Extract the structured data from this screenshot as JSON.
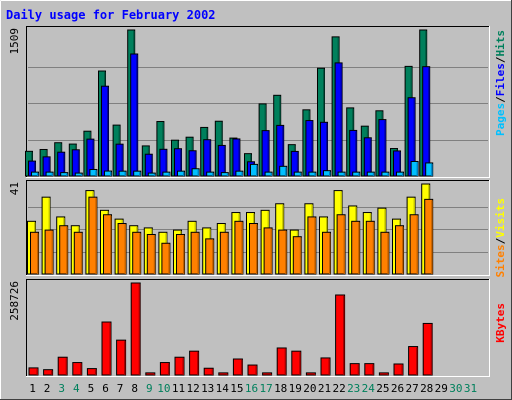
{
  "title": "Daily usage for February 2002",
  "colors": {
    "background": "#c0c0c0",
    "title": "#0000ff",
    "grid": "#808080",
    "hits_face": "#00805c",
    "hits_side": "#005840",
    "files_face": "#0000ff",
    "files_side": "#0000a0",
    "pages_face": "#00c0ff",
    "pages_side": "#0080c0",
    "visits_face": "#ffff00",
    "visits_side": "#c0c000",
    "sites_face": "#ff8000",
    "sites_side": "#c06000",
    "kbytes_face": "#ff0000",
    "kbytes_side": "#a00000",
    "day_weekday": "#000000",
    "day_weekend": "#00805c"
  },
  "chart_data": [
    {
      "type": "bar",
      "panel": "hits-files-pages",
      "scale_label": "1509",
      "ylim": [
        0,
        1509
      ],
      "grid": true,
      "axis_label": [
        "Pages",
        "Files",
        "Hits"
      ],
      "axis_label_colors": [
        "#00c0ff",
        "#0000ff",
        "#00805c"
      ],
      "categories": [
        "1",
        "2",
        "3",
        "4",
        "5",
        "6",
        "7",
        "8",
        "9",
        "10",
        "11",
        "12",
        "13",
        "14",
        "15",
        "16",
        "17",
        "18",
        "19",
        "20",
        "21",
        "22",
        "23",
        "24",
        "25",
        "26",
        "27",
        "28",
        "29",
        "30",
        "31"
      ],
      "series": [
        {
          "name": "Hits",
          "values": [
            255,
            274,
            344,
            330,
            463,
            1085,
            526,
            1509,
            311,
            563,
            370,
            401,
            502,
            566,
            392,
            231,
            745,
            834,
            324,
            684,
            1114,
            1438,
            704,
            515,
            674,
            284,
            1133,
            1509,
            0,
            0,
            0
          ]
        },
        {
          "name": "Files",
          "values": [
            154,
            198,
            246,
            271,
            381,
            928,
            329,
            1261,
            225,
            276,
            282,
            261,
            375,
            316,
            383,
            147,
            469,
            523,
            254,
            573,
            555,
            1169,
            471,
            395,
            583,
            259,
            809,
            1130,
            0,
            0,
            0
          ]
        },
        {
          "name": "Pages",
          "values": [
            40,
            40,
            35,
            30,
            67,
            51,
            50,
            50,
            30,
            40,
            50,
            75,
            40,
            35,
            50,
            120,
            40,
            100,
            40,
            40,
            55,
            40,
            40,
            40,
            40,
            40,
            150,
            135,
            0,
            0,
            0
          ]
        }
      ]
    },
    {
      "type": "bar",
      "panel": "visits-sites",
      "scale_label": "41",
      "ylim": [
        0,
        41
      ],
      "grid": true,
      "axis_label": [
        "Sites",
        "Visits"
      ],
      "axis_label_colors": [
        "#ff8000",
        "#ffff00"
      ],
      "categories": [
        "1",
        "2",
        "3",
        "4",
        "5",
        "6",
        "7",
        "8",
        "9",
        "10",
        "11",
        "12",
        "13",
        "14",
        "15",
        "16",
        "17",
        "18",
        "19",
        "20",
        "21",
        "22",
        "23",
        "24",
        "25",
        "26",
        "27",
        "28",
        "29",
        "30",
        "31"
      ],
      "series": [
        {
          "name": "Visits",
          "values": [
            24,
            35,
            26,
            22,
            38,
            29,
            25,
            22,
            21,
            19,
            20,
            24,
            21,
            23,
            28,
            28,
            29,
            32,
            20,
            32,
            26,
            38,
            31,
            28,
            30,
            25,
            35,
            41,
            0,
            0,
            0
          ]
        },
        {
          "name": "Sites",
          "values": [
            19,
            20,
            22,
            19,
            35,
            27,
            23,
            19,
            18,
            14,
            18,
            19,
            16,
            19,
            24,
            23,
            21,
            20,
            17,
            26,
            19,
            27,
            24,
            24,
            19,
            22,
            27,
            34,
            0,
            0,
            0
          ]
        }
      ]
    },
    {
      "type": "bar",
      "panel": "kbytes",
      "scale_label": "258726",
      "ylim": [
        0,
        258726
      ],
      "grid": false,
      "axis_label": [
        "KBytes"
      ],
      "axis_label_colors": [
        "#ff0000"
      ],
      "categories": [
        "1",
        "2",
        "3",
        "4",
        "5",
        "6",
        "7",
        "8",
        "9",
        "10",
        "11",
        "12",
        "13",
        "14",
        "15",
        "16",
        "17",
        "18",
        "19",
        "20",
        "21",
        "22",
        "23",
        "24",
        "25",
        "26",
        "27",
        "28",
        "29",
        "30",
        "31"
      ],
      "series": [
        {
          "name": "KBytes",
          "values": [
            20000,
            15000,
            50000,
            35000,
            18000,
            149000,
            98000,
            258726,
            6000,
            35000,
            50000,
            67000,
            19000,
            6000,
            45000,
            28000,
            6000,
            76000,
            67000,
            6000,
            48000,
            225000,
            32000,
            32000,
            6000,
            31000,
            80000,
            145000,
            0,
            0,
            0
          ]
        }
      ]
    }
  ],
  "days": [
    {
      "label": "1",
      "weekend": false
    },
    {
      "label": "2",
      "weekend": false
    },
    {
      "label": "3",
      "weekend": true
    },
    {
      "label": "4",
      "weekend": true
    },
    {
      "label": "5",
      "weekend": false
    },
    {
      "label": "6",
      "weekend": false
    },
    {
      "label": "7",
      "weekend": false
    },
    {
      "label": "8",
      "weekend": false
    },
    {
      "label": "9",
      "weekend": true
    },
    {
      "label": "10",
      "weekend": true
    },
    {
      "label": "11",
      "weekend": false
    },
    {
      "label": "12",
      "weekend": false
    },
    {
      "label": "13",
      "weekend": false
    },
    {
      "label": "14",
      "weekend": false
    },
    {
      "label": "15",
      "weekend": false
    },
    {
      "label": "16",
      "weekend": true
    },
    {
      "label": "17",
      "weekend": true
    },
    {
      "label": "18",
      "weekend": false
    },
    {
      "label": "19",
      "weekend": false
    },
    {
      "label": "20",
      "weekend": false
    },
    {
      "label": "21",
      "weekend": false
    },
    {
      "label": "22",
      "weekend": false
    },
    {
      "label": "23",
      "weekend": true
    },
    {
      "label": "24",
      "weekend": true
    },
    {
      "label": "25",
      "weekend": false
    },
    {
      "label": "26",
      "weekend": false
    },
    {
      "label": "27",
      "weekend": false
    },
    {
      "label": "28",
      "weekend": false
    },
    {
      "label": "29",
      "weekend": false
    },
    {
      "label": "30",
      "weekend": true
    },
    {
      "label": "31",
      "weekend": true
    }
  ]
}
